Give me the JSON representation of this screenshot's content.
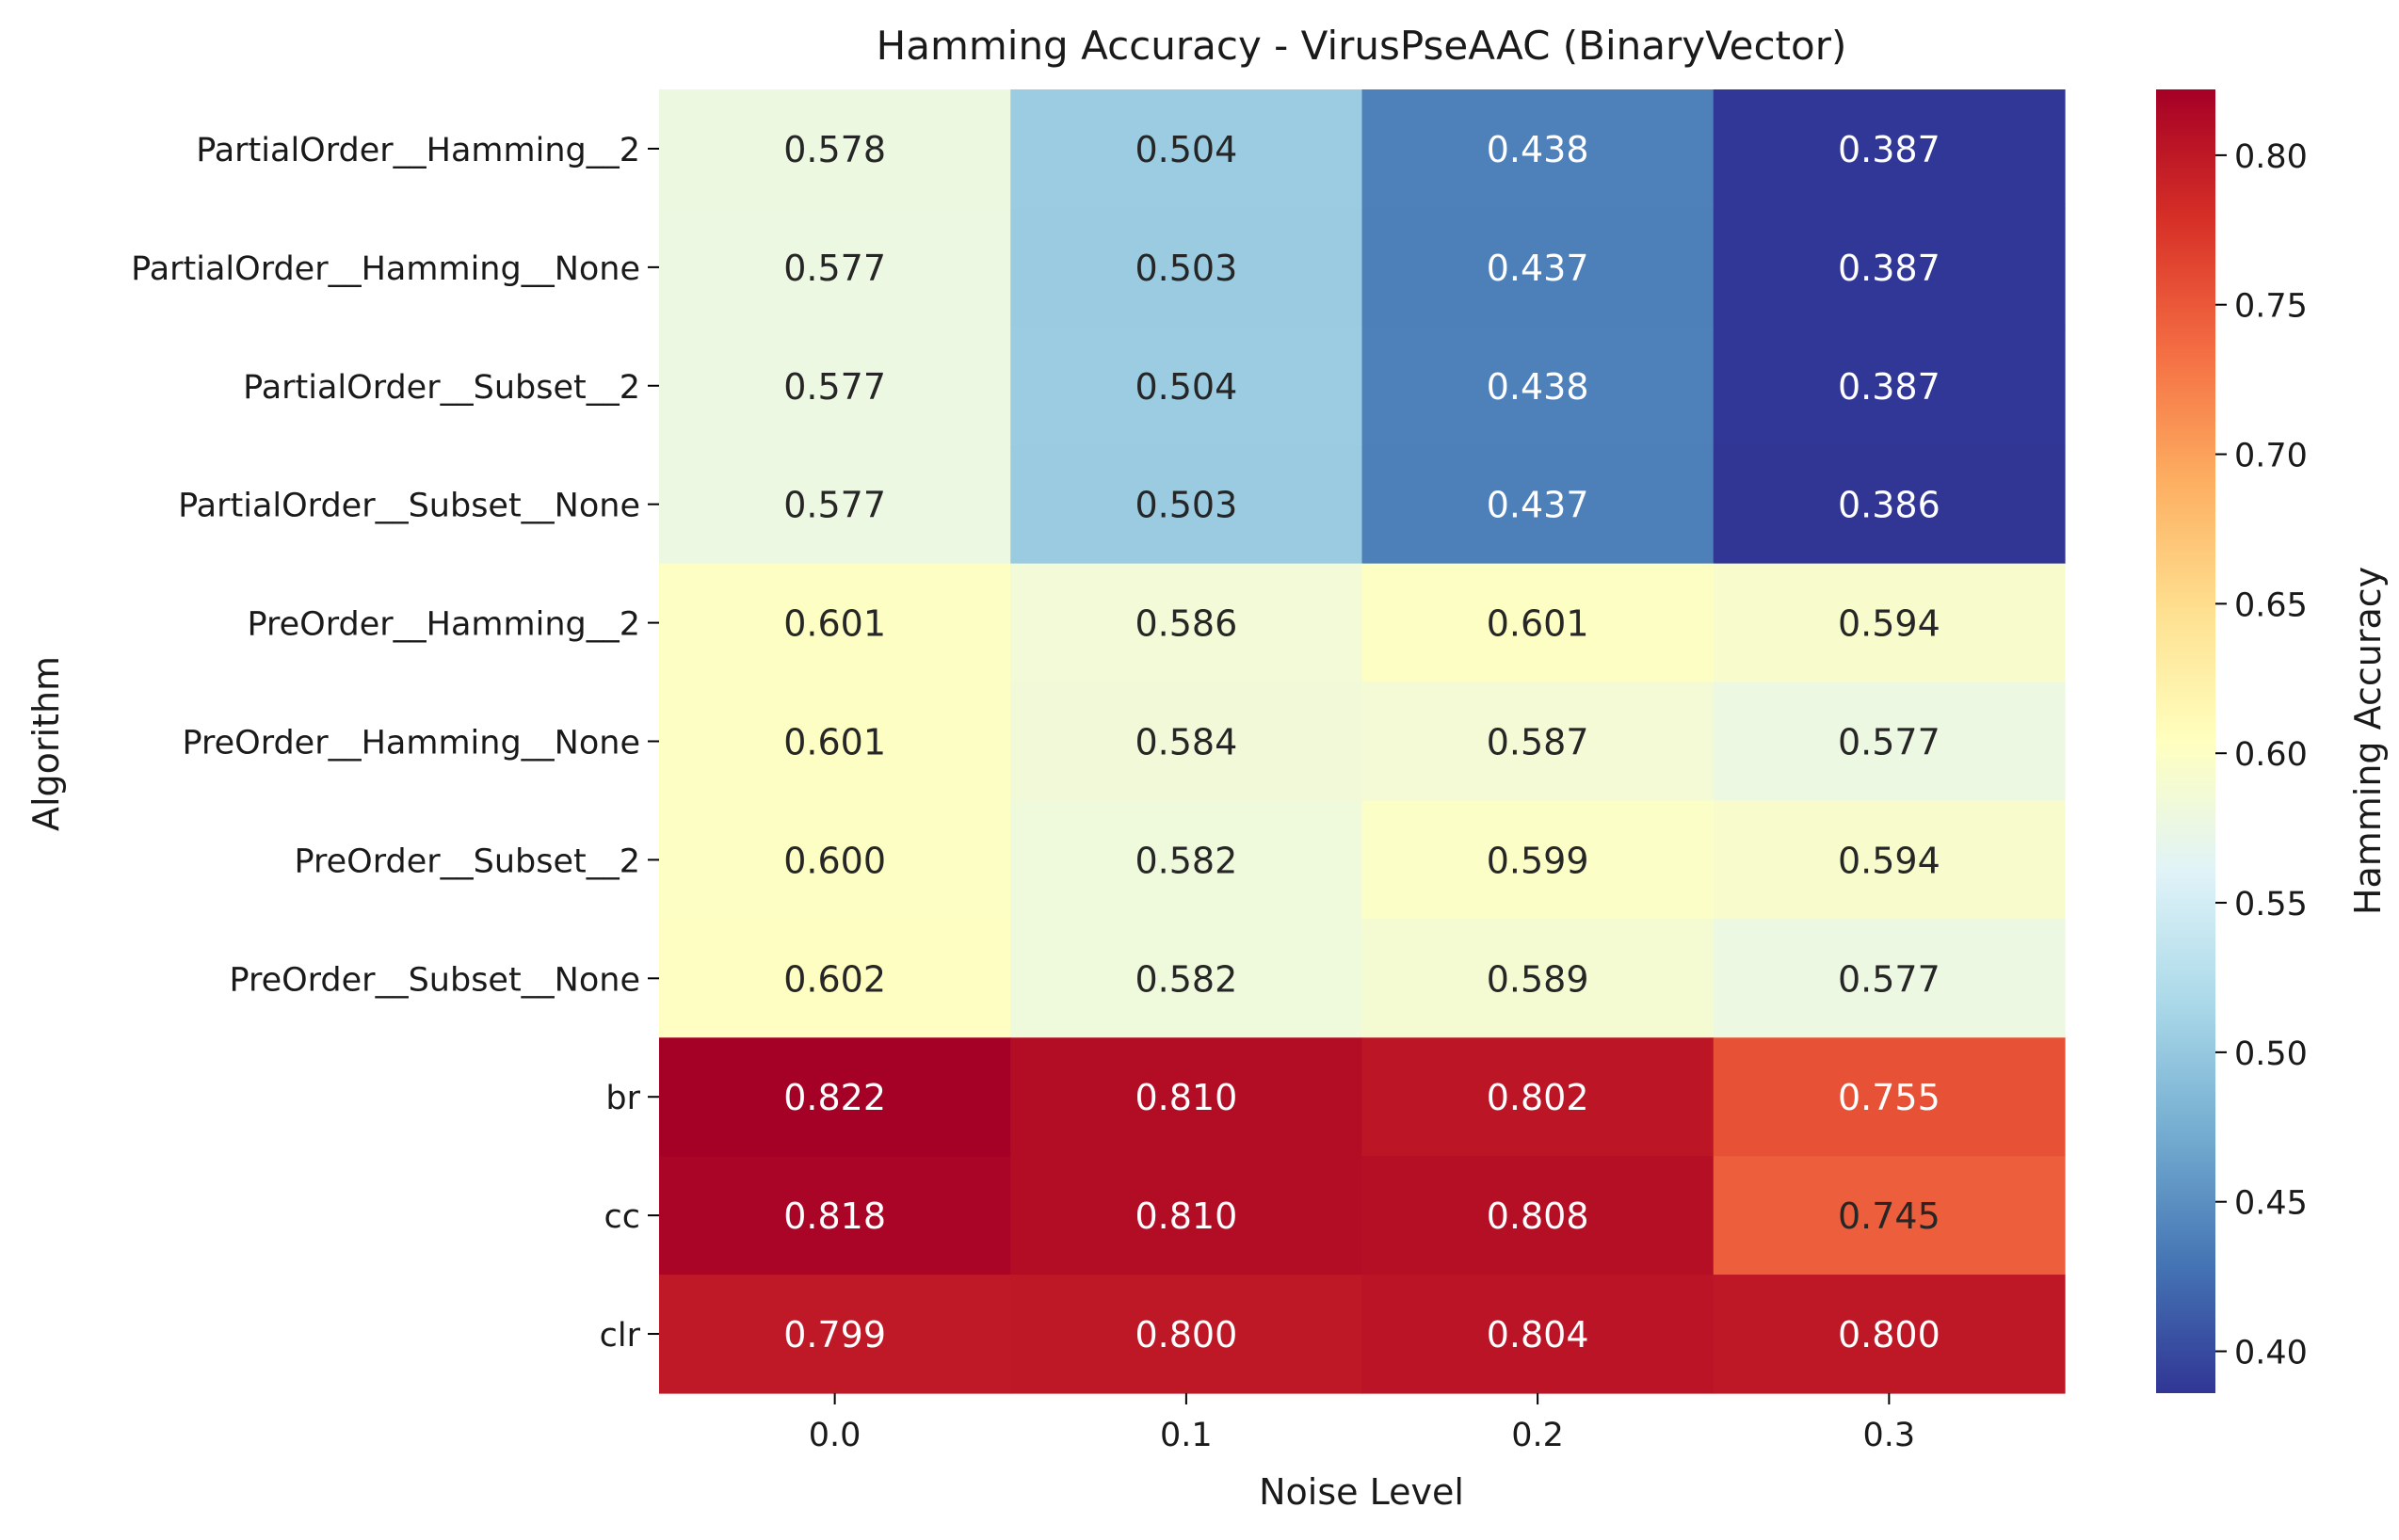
{
  "chart_data": {
    "type": "heatmap",
    "title": "Hamming Accuracy - VirusPseAAC (BinaryVector)",
    "xlabel": "Noise Level",
    "ylabel": "Algorithm",
    "x_categories": [
      "0.0",
      "0.1",
      "0.2",
      "0.3"
    ],
    "y_categories": [
      "PartialOrder__Hamming__2",
      "PartialOrder__Hamming__None",
      "PartialOrder__Subset__2",
      "PartialOrder__Subset__None",
      "PreOrder__Hamming__2",
      "PreOrder__Hamming__None",
      "PreOrder__Subset__2",
      "PreOrder__Subset__None",
      "br",
      "cc",
      "clr"
    ],
    "values": [
      [
        0.578,
        0.504,
        0.438,
        0.387
      ],
      [
        0.577,
        0.503,
        0.437,
        0.387
      ],
      [
        0.577,
        0.504,
        0.438,
        0.387
      ],
      [
        0.577,
        0.503,
        0.437,
        0.386
      ],
      [
        0.601,
        0.586,
        0.601,
        0.594
      ],
      [
        0.601,
        0.584,
        0.587,
        0.577
      ],
      [
        0.6,
        0.582,
        0.599,
        0.594
      ],
      [
        0.602,
        0.582,
        0.589,
        0.577
      ],
      [
        0.822,
        0.81,
        0.802,
        0.755
      ],
      [
        0.818,
        0.81,
        0.808,
        0.745
      ],
      [
        0.799,
        0.8,
        0.804,
        0.8
      ]
    ],
    "value_format": "0.000",
    "colormap": "RdYlBu_r",
    "vmin": 0.386,
    "vmax": 0.822,
    "colorbar": {
      "label": "Hamming Accuracy",
      "ticks": [
        0.4,
        0.45,
        0.5,
        0.55,
        0.6,
        0.65,
        0.7,
        0.75,
        0.8
      ],
      "tick_labels": [
        "0.40",
        "0.45",
        "0.50",
        "0.55",
        "0.60",
        "0.65",
        "0.70",
        "0.75",
        "0.80"
      ]
    },
    "colors": {
      "text_dark": "#262626",
      "text_light": "#ffffff",
      "axis": "#000000"
    }
  }
}
